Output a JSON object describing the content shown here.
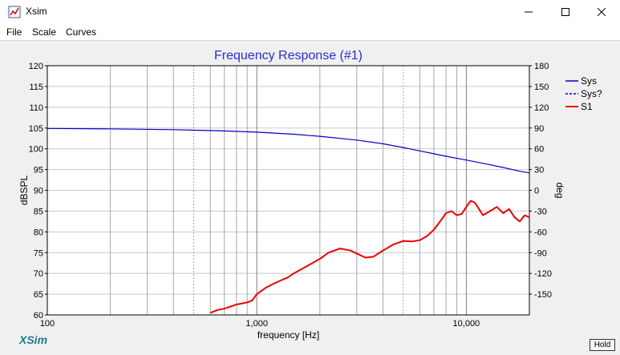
{
  "window": {
    "title": "Xsim"
  },
  "menu": {
    "items": [
      "File",
      "Scale",
      "Curves"
    ]
  },
  "hold_label": "Hold",
  "logo_text": "XSim",
  "colors": {
    "sys": "#0000cc",
    "s1": "#ee0000",
    "title": "#2b2bd6",
    "logo": "#1a7a8a"
  },
  "chart_data": {
    "type": "line",
    "title": "Frequency Response (#1)",
    "xlabel": "frequency [Hz]",
    "ylabel": "dBSPL",
    "y2label": "deg",
    "xscale": "log",
    "xlim": [
      100,
      20000
    ],
    "ylim": [
      60,
      120
    ],
    "y2lim": [
      -180,
      180
    ],
    "xticks": [
      100,
      1000,
      10000
    ],
    "xtick_labels": [
      "100",
      "1,000",
      "10,000"
    ],
    "yticks": [
      60,
      65,
      70,
      75,
      80,
      85,
      90,
      95,
      100,
      105,
      110,
      115,
      120
    ],
    "y2ticks": [
      -150,
      -120,
      -90,
      -60,
      -30,
      0,
      30,
      60,
      90,
      120,
      150,
      180
    ],
    "legend": {
      "placement": "right",
      "entries": [
        "Sys",
        "Sys?",
        "S1"
      ]
    },
    "grid": true,
    "series": [
      {
        "name": "Sys",
        "axis": "left",
        "style": "solid",
        "x": [
          100,
          200,
          400,
          700,
          1000,
          1500,
          2000,
          3000,
          4000,
          5000,
          6000,
          7000,
          8000,
          10000,
          12000,
          15000,
          18000,
          20000
        ],
        "y": [
          104.9,
          104.8,
          104.6,
          104.3,
          104.0,
          103.5,
          103.0,
          102.1,
          101.2,
          100.3,
          99.5,
          98.8,
          98.2,
          97.3,
          96.5,
          95.5,
          94.6,
          94.2
        ]
      },
      {
        "name": "Sys?",
        "axis": "left",
        "style": "dashed",
        "x": [],
        "y": []
      },
      {
        "name": "S1",
        "axis": "left",
        "style": "solid",
        "x": [
          600,
          650,
          700,
          800,
          900,
          950,
          1000,
          1100,
          1200,
          1300,
          1400,
          1500,
          1700,
          2000,
          2200,
          2500,
          2800,
          3000,
          3300,
          3600,
          4000,
          4500,
          5000,
          5500,
          6000,
          6500,
          7000,
          7500,
          8000,
          8500,
          9000,
          9500,
          10000,
          10500,
          11000,
          11500,
          12000,
          13000,
          14000,
          15000,
          16000,
          17000,
          18000,
          19000,
          20000
        ],
        "y": [
          60.5,
          61.2,
          61.5,
          62.5,
          63.0,
          63.5,
          65.0,
          66.5,
          67.5,
          68.3,
          69.0,
          70.0,
          71.5,
          73.5,
          75.0,
          76.0,
          75.5,
          74.8,
          73.8,
          74.0,
          75.5,
          77.0,
          77.8,
          77.7,
          78.0,
          79.0,
          80.5,
          82.5,
          84.5,
          85.0,
          84.0,
          84.3,
          86.0,
          87.5,
          87.0,
          85.5,
          84.0,
          85.0,
          86.0,
          84.5,
          85.5,
          83.5,
          82.5,
          84.0,
          83.5
        ]
      }
    ]
  }
}
